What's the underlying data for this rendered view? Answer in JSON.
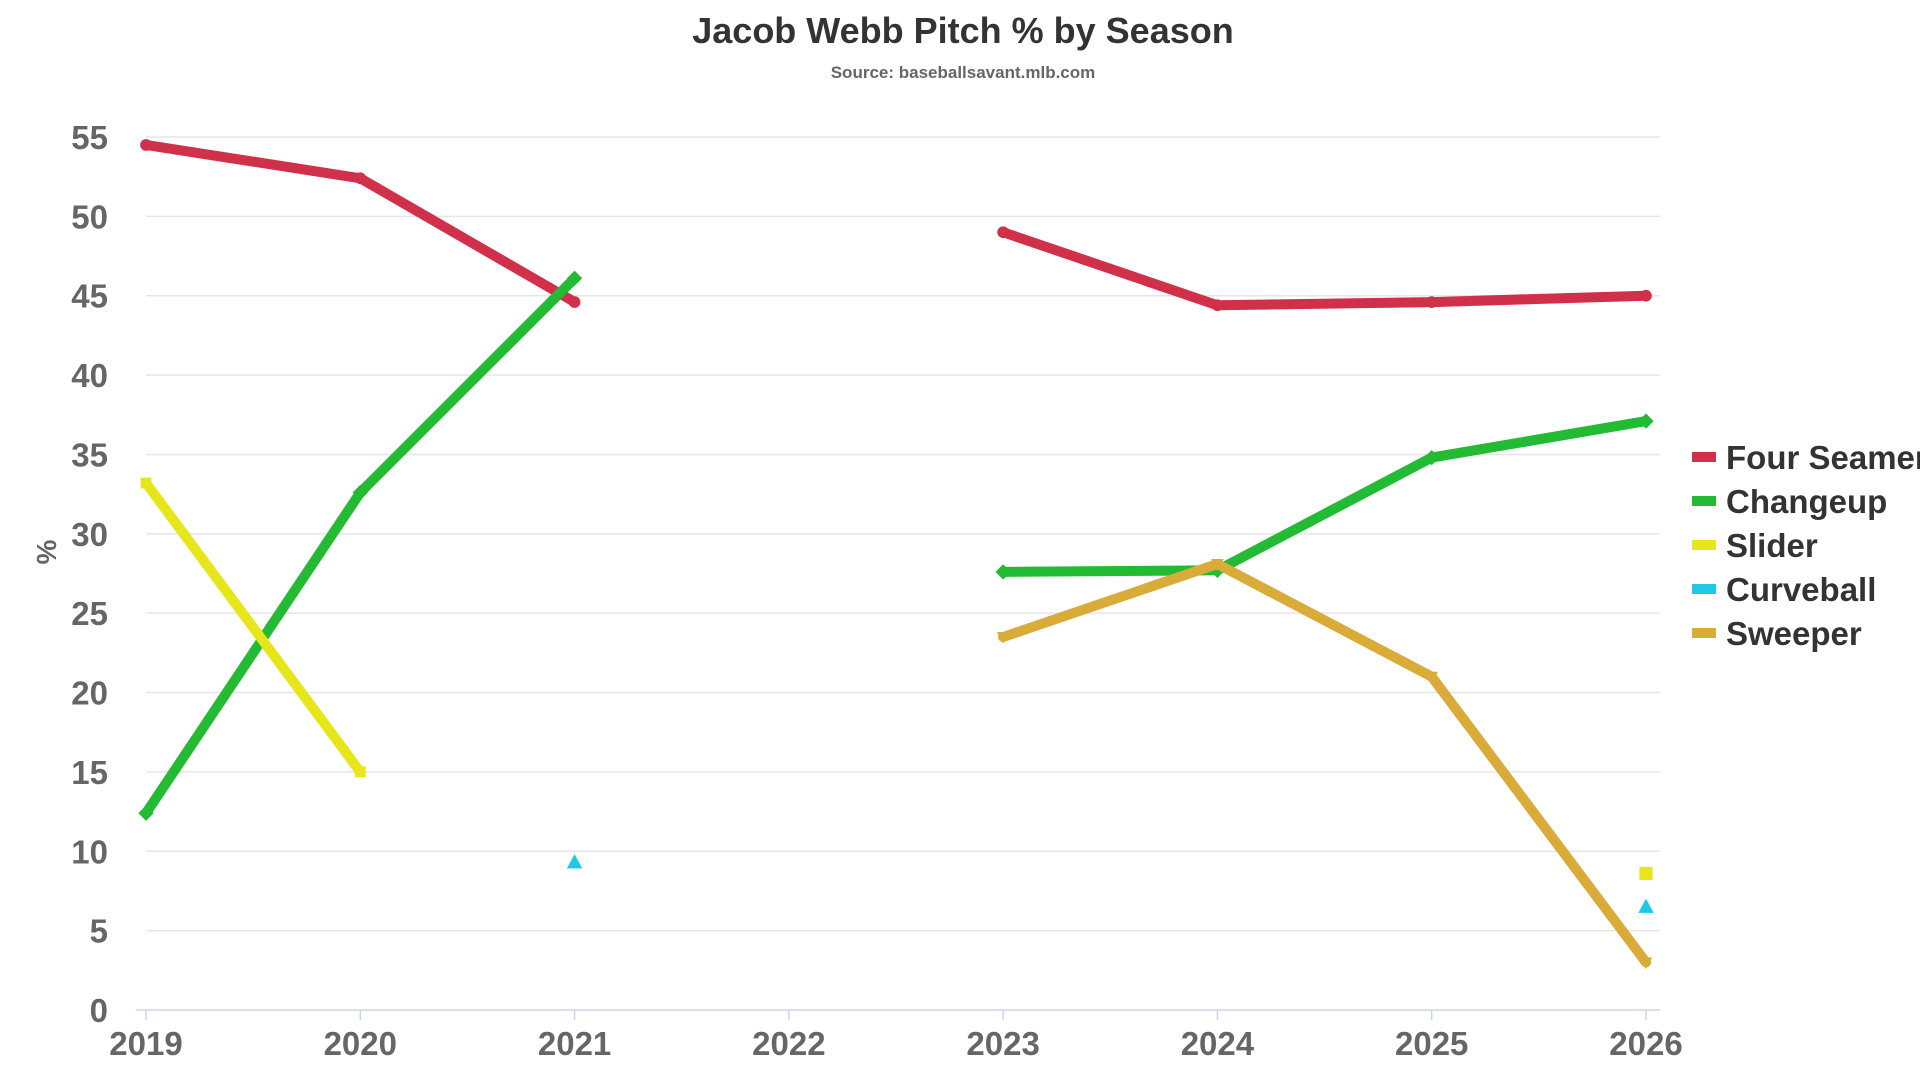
{
  "chart_data": {
    "type": "line",
    "title": "Jacob Webb Pitch % by Season",
    "subtitle": "Source: baseballsavant.mlb.com",
    "ylabel": "%",
    "xlabel": "",
    "categories": [
      "2019",
      "2020",
      "2021",
      "2022",
      "2023",
      "2024",
      "2025",
      "2026"
    ],
    "ylim": [
      0,
      55
    ],
    "yticks": [
      0,
      5,
      10,
      15,
      20,
      25,
      30,
      35,
      40,
      45,
      50,
      55
    ],
    "grid": true,
    "legend_position": "right",
    "series": [
      {
        "name": "Four Seamer",
        "color": "#d0304a",
        "marker": "circle",
        "values": [
          54.5,
          52.4,
          44.6,
          null,
          49.0,
          44.4,
          44.6,
          45.0
        ]
      },
      {
        "name": "Changeup",
        "color": "#22bb33",
        "marker": "diamond",
        "values": [
          12.4,
          32.6,
          46.1,
          null,
          27.6,
          27.7,
          34.8,
          37.1
        ]
      },
      {
        "name": "Slider",
        "color": "#e6e61a",
        "marker": "square",
        "values": [
          33.2,
          15.0,
          null,
          null,
          null,
          null,
          null,
          8.6
        ]
      },
      {
        "name": "Curveball",
        "color": "#1ec8e6",
        "marker": "triangle",
        "values": [
          null,
          null,
          9.3,
          null,
          null,
          null,
          null,
          6.5
        ]
      },
      {
        "name": "Sweeper",
        "color": "#d9ac3a",
        "marker": "triangle-down",
        "values": [
          null,
          null,
          null,
          null,
          23.5,
          28.1,
          21.0,
          3.0
        ]
      }
    ]
  }
}
